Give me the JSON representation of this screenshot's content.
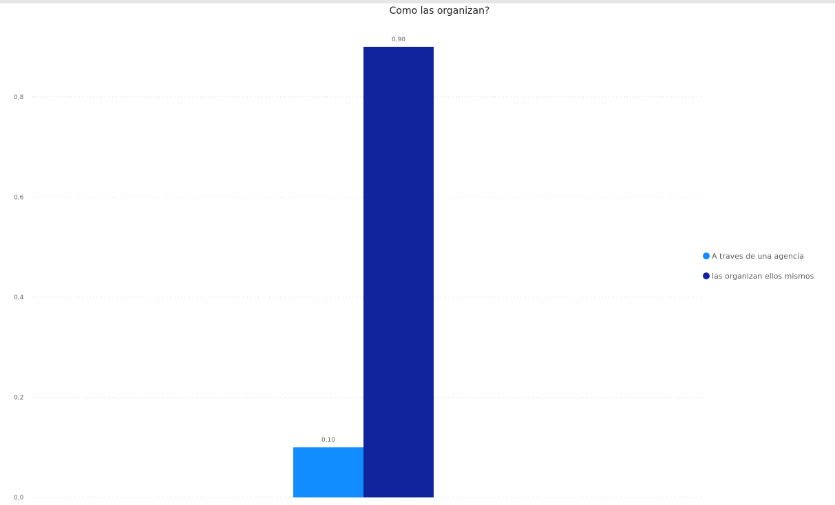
{
  "chart_data": {
    "type": "bar",
    "title": "Como las organizan?",
    "categories": [
      ""
    ],
    "series": [
      {
        "name": "A traves de una agencia",
        "values": [
          0.1
        ],
        "label": "0,10",
        "color": "#118DFF"
      },
      {
        "name": "las organizan ellos mismos",
        "values": [
          0.9
        ],
        "label": "0,90",
        "color": "#12239E"
      }
    ],
    "ylim": [
      0,
      0.9
    ],
    "yticks": [
      {
        "value": 0.0,
        "label": "0,0"
      },
      {
        "value": 0.2,
        "label": "0,2"
      },
      {
        "value": 0.4,
        "label": "0,4"
      },
      {
        "value": 0.6,
        "label": "0,6"
      },
      {
        "value": 0.8,
        "label": "0,8"
      }
    ],
    "grid": true,
    "legend_position": "right"
  }
}
